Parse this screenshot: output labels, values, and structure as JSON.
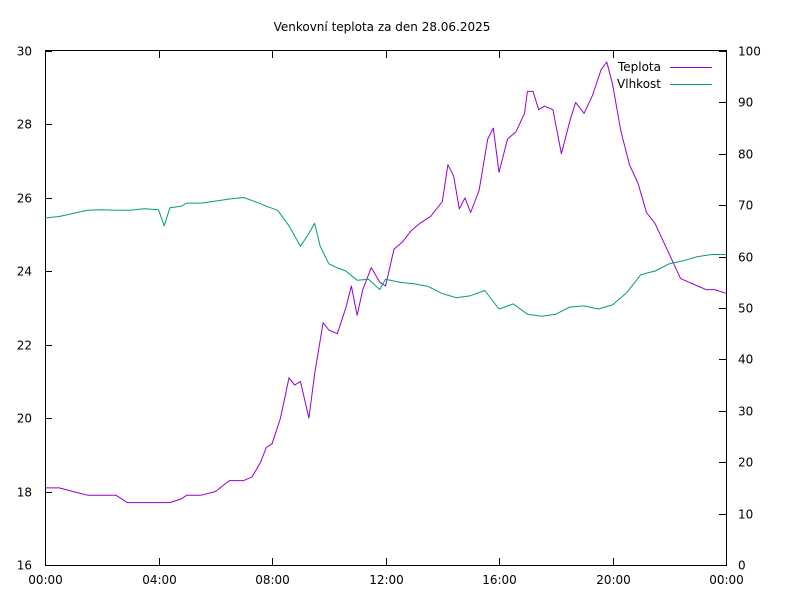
{
  "chart_data": {
    "type": "line",
    "title": "Venkovní teplota za den 28.06.2025",
    "xlabel": "",
    "ylabel": "",
    "y2label": "",
    "x_ticks": [
      "00:00",
      "04:00",
      "08:00",
      "12:00",
      "16:00",
      "20:00",
      "00:00"
    ],
    "xlim": [
      0,
      24
    ],
    "x_unit": "hours",
    "ylim": [
      16,
      30
    ],
    "y_ticks": [
      16,
      18,
      20,
      22,
      24,
      26,
      28,
      30
    ],
    "y2lim": [
      0,
      100
    ],
    "y2_ticks": [
      0,
      10,
      20,
      30,
      40,
      50,
      60,
      70,
      80,
      90,
      100
    ],
    "grid": false,
    "legend_position": "top-right",
    "series": [
      {
        "name": "Teplota",
        "axis": "left",
        "color": "#9400d3",
        "points": [
          [
            0.0,
            18.1
          ],
          [
            0.5,
            18.1
          ],
          [
            1.0,
            18.0
          ],
          [
            1.5,
            17.9
          ],
          [
            2.0,
            17.9
          ],
          [
            2.5,
            17.9
          ],
          [
            2.9,
            17.7
          ],
          [
            3.2,
            17.7
          ],
          [
            3.6,
            17.7
          ],
          [
            4.0,
            17.7
          ],
          [
            4.4,
            17.7
          ],
          [
            4.8,
            17.8
          ],
          [
            5.0,
            17.9
          ],
          [
            5.5,
            17.9
          ],
          [
            6.0,
            18.0
          ],
          [
            6.5,
            18.3
          ],
          [
            7.0,
            18.3
          ],
          [
            7.3,
            18.4
          ],
          [
            7.6,
            18.8
          ],
          [
            7.8,
            19.2
          ],
          [
            8.0,
            19.3
          ],
          [
            8.3,
            20.0
          ],
          [
            8.6,
            21.1
          ],
          [
            8.8,
            20.9
          ],
          [
            9.0,
            21.0
          ],
          [
            9.3,
            20.0
          ],
          [
            9.5,
            21.2
          ],
          [
            9.8,
            22.6
          ],
          [
            10.0,
            22.4
          ],
          [
            10.3,
            22.3
          ],
          [
            10.6,
            23.0
          ],
          [
            10.8,
            23.6
          ],
          [
            11.0,
            22.8
          ],
          [
            11.2,
            23.5
          ],
          [
            11.5,
            24.1
          ],
          [
            11.8,
            23.7
          ],
          [
            12.0,
            23.6
          ],
          [
            12.3,
            24.6
          ],
          [
            12.6,
            24.8
          ],
          [
            12.9,
            25.1
          ],
          [
            13.2,
            25.3
          ],
          [
            13.6,
            25.5
          ],
          [
            14.0,
            25.9
          ],
          [
            14.2,
            26.9
          ],
          [
            14.4,
            26.6
          ],
          [
            14.6,
            25.7
          ],
          [
            14.8,
            26.0
          ],
          [
            15.0,
            25.6
          ],
          [
            15.3,
            26.2
          ],
          [
            15.6,
            27.6
          ],
          [
            15.8,
            27.9
          ],
          [
            16.0,
            26.7
          ],
          [
            16.3,
            27.6
          ],
          [
            16.6,
            27.8
          ],
          [
            16.9,
            28.3
          ],
          [
            17.0,
            28.9
          ],
          [
            17.2,
            28.9
          ],
          [
            17.4,
            28.4
          ],
          [
            17.6,
            28.5
          ],
          [
            17.9,
            28.4
          ],
          [
            18.2,
            27.2
          ],
          [
            18.5,
            28.1
          ],
          [
            18.7,
            28.6
          ],
          [
            19.0,
            28.3
          ],
          [
            19.3,
            28.8
          ],
          [
            19.6,
            29.5
          ],
          [
            19.8,
            29.7
          ],
          [
            20.0,
            29.1
          ],
          [
            20.3,
            27.8
          ],
          [
            20.6,
            26.9
          ],
          [
            20.9,
            26.4
          ],
          [
            21.2,
            25.6
          ],
          [
            21.5,
            25.3
          ],
          [
            21.8,
            24.8
          ],
          [
            22.1,
            24.3
          ],
          [
            22.4,
            23.8
          ],
          [
            22.7,
            23.7
          ],
          [
            23.0,
            23.6
          ],
          [
            23.3,
            23.5
          ],
          [
            23.6,
            23.5
          ],
          [
            24.0,
            23.4
          ]
        ]
      },
      {
        "name": "Vlhkost",
        "axis": "right",
        "color": "#009e73",
        "points": [
          [
            0.0,
            67.5
          ],
          [
            0.5,
            67.8
          ],
          [
            1.0,
            68.4
          ],
          [
            1.5,
            69.0
          ],
          [
            2.0,
            69.1
          ],
          [
            2.5,
            69.0
          ],
          [
            3.0,
            69.0
          ],
          [
            3.5,
            69.3
          ],
          [
            4.0,
            69.1
          ],
          [
            4.2,
            66.0
          ],
          [
            4.4,
            69.5
          ],
          [
            4.8,
            69.8
          ],
          [
            5.0,
            70.4
          ],
          [
            5.5,
            70.4
          ],
          [
            6.0,
            70.8
          ],
          [
            6.5,
            71.2
          ],
          [
            7.0,
            71.5
          ],
          [
            7.5,
            70.5
          ],
          [
            7.8,
            69.8
          ],
          [
            8.2,
            69.0
          ],
          [
            8.6,
            66.0
          ],
          [
            9.0,
            62.0
          ],
          [
            9.3,
            64.5
          ],
          [
            9.5,
            66.5
          ],
          [
            9.7,
            62.0
          ],
          [
            10.0,
            58.6
          ],
          [
            10.3,
            57.8
          ],
          [
            10.6,
            57.2
          ],
          [
            11.0,
            55.4
          ],
          [
            11.4,
            55.6
          ],
          [
            11.8,
            53.6
          ],
          [
            12.0,
            55.6
          ],
          [
            12.5,
            55.0
          ],
          [
            13.0,
            54.7
          ],
          [
            13.5,
            54.2
          ],
          [
            14.0,
            52.8
          ],
          [
            14.5,
            52.0
          ],
          [
            15.0,
            52.4
          ],
          [
            15.5,
            53.4
          ],
          [
            16.0,
            49.8
          ],
          [
            16.5,
            50.8
          ],
          [
            17.0,
            48.8
          ],
          [
            17.5,
            48.4
          ],
          [
            18.0,
            48.8
          ],
          [
            18.5,
            50.2
          ],
          [
            19.0,
            50.4
          ],
          [
            19.5,
            49.8
          ],
          [
            20.0,
            50.6
          ],
          [
            20.5,
            53.0
          ],
          [
            21.0,
            56.5
          ],
          [
            21.5,
            57.2
          ],
          [
            22.0,
            58.6
          ],
          [
            22.5,
            59.2
          ],
          [
            23.0,
            60.0
          ],
          [
            23.5,
            60.4
          ],
          [
            24.0,
            60.4
          ]
        ]
      }
    ]
  }
}
